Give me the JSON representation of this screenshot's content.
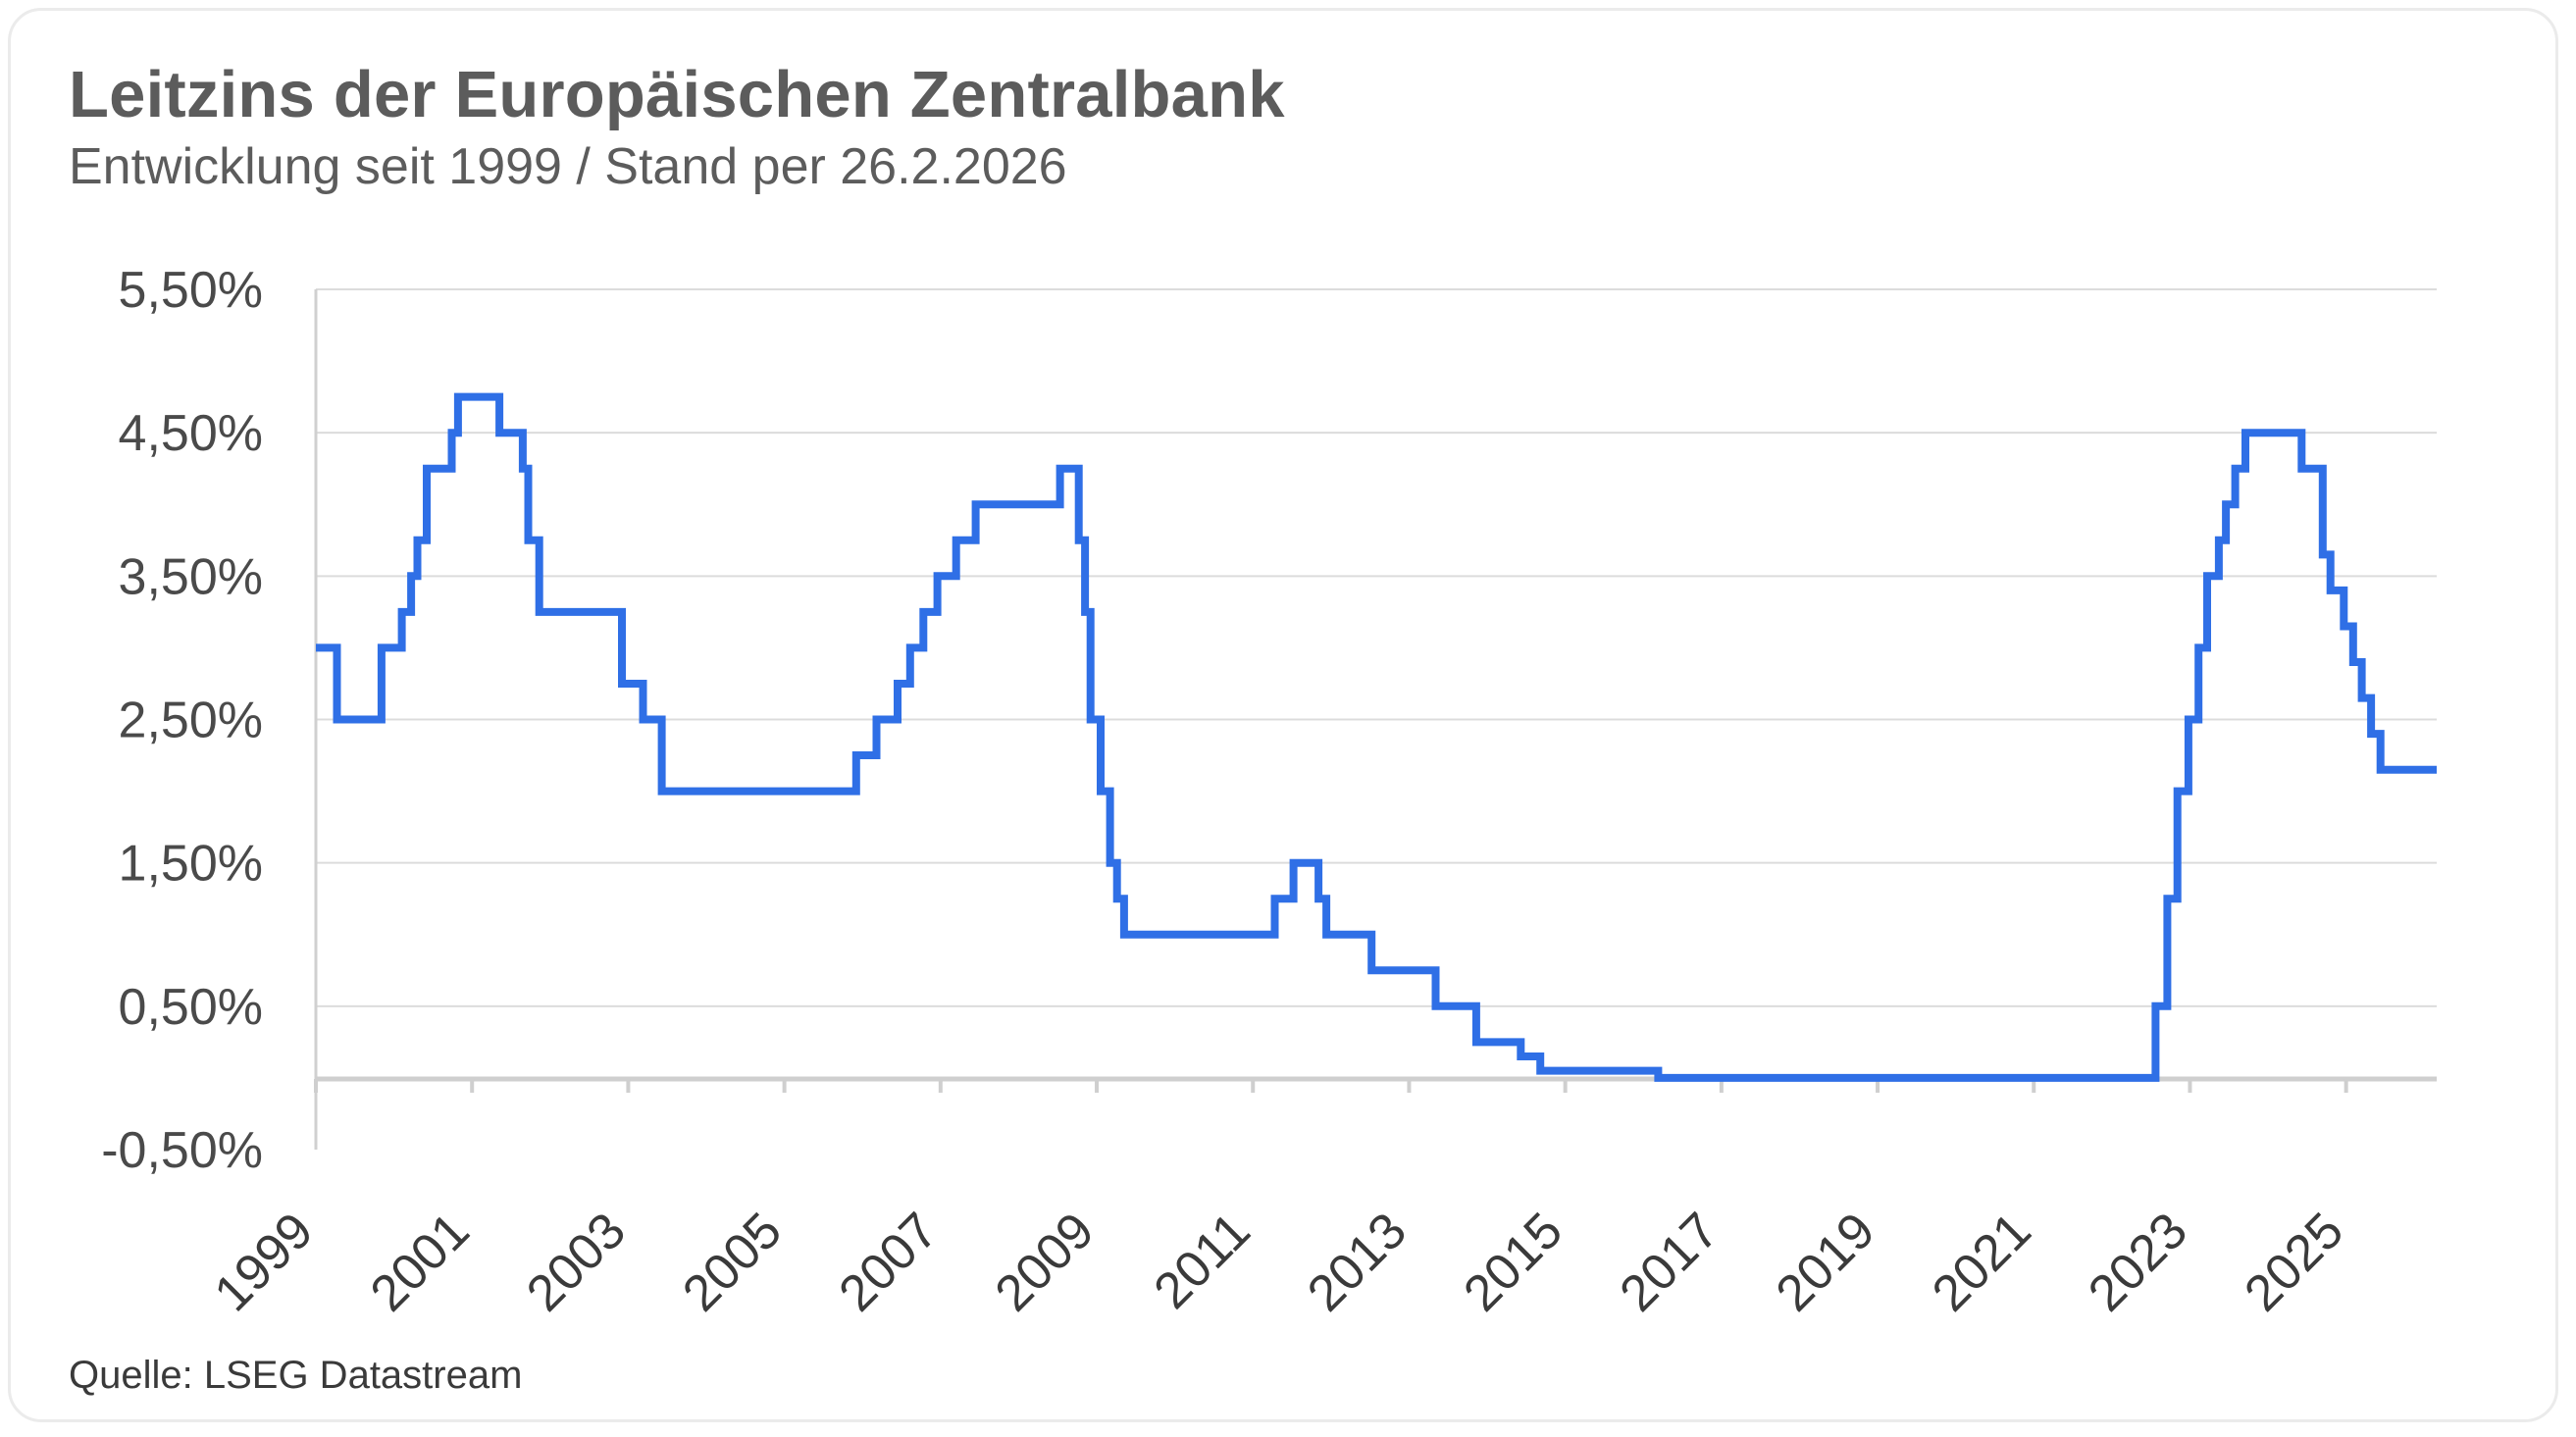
{
  "title": "Leitzins der Europäischen Zentralbank",
  "subtitle": "Entwicklung seit 1999 / Stand per 26.2.2026",
  "source": "Quelle: LSEG Datastream",
  "colors": {
    "line": "#2f6fe6",
    "grid": "#dcdcdc",
    "axis": "#d0d0d0",
    "text": "#5c5c5c"
  },
  "chart_data": {
    "type": "line",
    "title": "Leitzins der Europäischen Zentralbank",
    "subtitle": "Entwicklung seit 1999 / Stand per 26.2.2026",
    "xlabel": "",
    "ylabel": "",
    "xlim": [
      1999.0,
      2026.16
    ],
    "ylim": [
      -0.5,
      5.5
    ],
    "grid": true,
    "legend": "none",
    "y_ticks": [
      {
        "value": 5.5,
        "label": "5,50%"
      },
      {
        "value": 4.5,
        "label": "4,50%"
      },
      {
        "value": 3.5,
        "label": "3,50%"
      },
      {
        "value": 2.5,
        "label": "2,50%"
      },
      {
        "value": 1.5,
        "label": "1,50%"
      },
      {
        "value": 0.5,
        "label": "0,50%"
      },
      {
        "value": -0.5,
        "label": "-0,50%"
      }
    ],
    "x_ticks": [
      {
        "value": 1999,
        "label": "1999"
      },
      {
        "value": 2001,
        "label": "2001"
      },
      {
        "value": 2003,
        "label": "2003"
      },
      {
        "value": 2005,
        "label": "2005"
      },
      {
        "value": 2007,
        "label": "2007"
      },
      {
        "value": 2009,
        "label": "2009"
      },
      {
        "value": 2011,
        "label": "2011"
      },
      {
        "value": 2013,
        "label": "2013"
      },
      {
        "value": 2015,
        "label": "2015"
      },
      {
        "value": 2017,
        "label": "2017"
      },
      {
        "value": 2019,
        "label": "2019"
      },
      {
        "value": 2021,
        "label": "2021"
      },
      {
        "value": 2023,
        "label": "2023"
      },
      {
        "value": 2025,
        "label": "2025"
      }
    ],
    "series": [
      {
        "step": true,
        "points": [
          [
            1999.0,
            3.0
          ],
          [
            1999.27,
            2.5
          ],
          [
            1999.84,
            3.0
          ],
          [
            2000.1,
            3.25
          ],
          [
            2000.22,
            3.5
          ],
          [
            2000.3,
            3.75
          ],
          [
            2000.42,
            4.25
          ],
          [
            2000.74,
            4.5
          ],
          [
            2000.82,
            4.75
          ],
          [
            2001.35,
            4.5
          ],
          [
            2001.65,
            4.25
          ],
          [
            2001.72,
            3.75
          ],
          [
            2001.86,
            3.25
          ],
          [
            2002.92,
            2.75
          ],
          [
            2003.19,
            2.5
          ],
          [
            2003.43,
            2.0
          ],
          [
            2005.92,
            2.25
          ],
          [
            2006.18,
            2.5
          ],
          [
            2006.45,
            2.75
          ],
          [
            2006.61,
            3.0
          ],
          [
            2006.78,
            3.25
          ],
          [
            2006.96,
            3.5
          ],
          [
            2007.2,
            3.75
          ],
          [
            2007.45,
            4.0
          ],
          [
            2008.53,
            4.25
          ],
          [
            2008.77,
            3.75
          ],
          [
            2008.85,
            3.25
          ],
          [
            2008.92,
            2.5
          ],
          [
            2009.05,
            2.0
          ],
          [
            2009.17,
            1.5
          ],
          [
            2009.26,
            1.25
          ],
          [
            2009.35,
            1.0
          ],
          [
            2011.28,
            1.25
          ],
          [
            2011.52,
            1.5
          ],
          [
            2011.84,
            1.25
          ],
          [
            2011.94,
            1.0
          ],
          [
            2012.52,
            0.75
          ],
          [
            2013.34,
            0.5
          ],
          [
            2013.86,
            0.25
          ],
          [
            2014.43,
            0.15
          ],
          [
            2014.68,
            0.05
          ],
          [
            2016.19,
            0.0
          ],
          [
            2022.56,
            0.5
          ],
          [
            2022.71,
            1.25
          ],
          [
            2022.84,
            2.0
          ],
          [
            2022.98,
            2.5
          ],
          [
            2023.11,
            3.0
          ],
          [
            2023.22,
            3.5
          ],
          [
            2023.37,
            3.75
          ],
          [
            2023.46,
            4.0
          ],
          [
            2023.58,
            4.25
          ],
          [
            2023.71,
            4.5
          ],
          [
            2024.43,
            4.25
          ],
          [
            2024.7,
            3.65
          ],
          [
            2024.8,
            3.4
          ],
          [
            2024.97,
            3.15
          ],
          [
            2025.09,
            2.9
          ],
          [
            2025.2,
            2.65
          ],
          [
            2025.32,
            2.4
          ],
          [
            2025.44,
            2.15
          ],
          [
            2026.16,
            2.15
          ]
        ]
      }
    ]
  }
}
